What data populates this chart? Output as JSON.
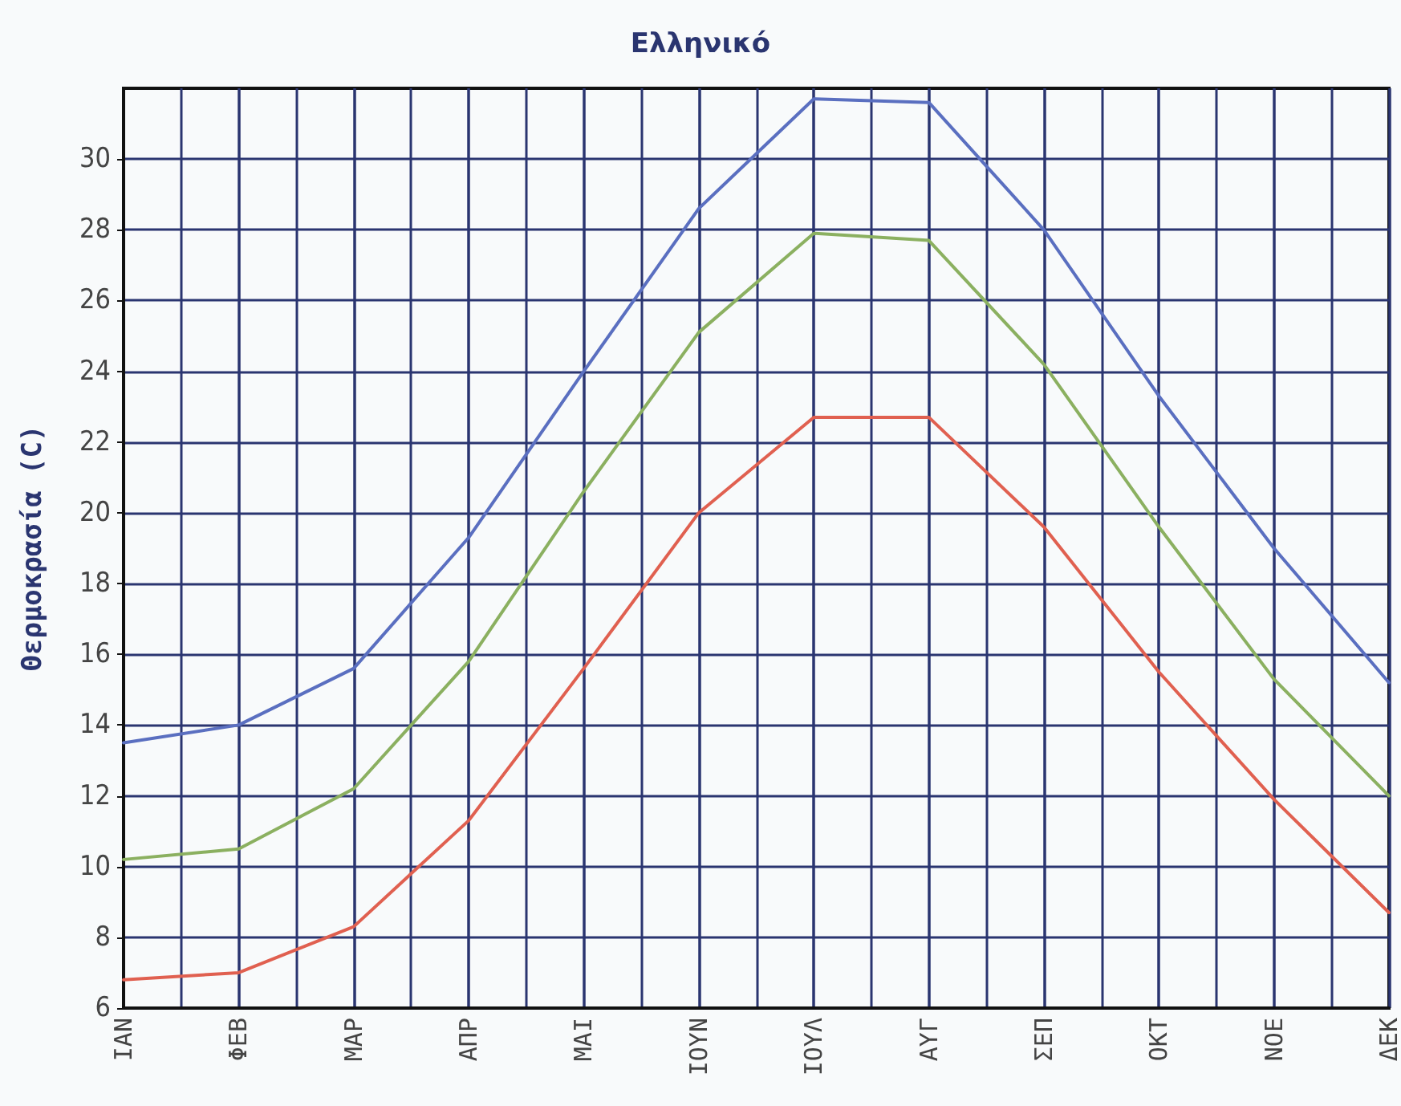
{
  "chart_data": {
    "type": "line",
    "title": "Ελληνικό",
    "ylabel": "Θερμοκρασία (C)",
    "categories": [
      "ΙΑΝ",
      "ΦΕΒ",
      "ΜΑΡ",
      "ΑΠΡ",
      "ΜΑΙ",
      "ΙΟΥΝ",
      "ΙΟΥΛ",
      "ΑΥΓ",
      "ΣΕΠ",
      "ΟΚΤ",
      "ΝΟΕ",
      "ΔΕΚ"
    ],
    "series": [
      {
        "color": "#5a6fc0",
        "values": [
          13.5,
          14,
          15.6,
          19.3,
          24,
          28.6,
          31.7,
          31.6,
          28,
          23.3,
          19,
          15.2
        ]
      },
      {
        "color": "#8bb060",
        "values": [
          10.2,
          10.5,
          12.2,
          15.8,
          20.6,
          25.1,
          27.9,
          27.7,
          24.2,
          19.6,
          15.3,
          12
        ]
      },
      {
        "color": "#e06050",
        "values": [
          6.8,
          7,
          8.3,
          11.3,
          15.6,
          20,
          22.7,
          22.7,
          19.6,
          15.5,
          11.9,
          8.7
        ]
      }
    ],
    "ylim": [
      6,
      32
    ],
    "yticks": [
      6,
      8,
      10,
      12,
      14,
      16,
      18,
      20,
      22,
      24,
      26,
      28,
      30
    ],
    "grid": true,
    "marker": "none",
    "line_style": "solid"
  }
}
